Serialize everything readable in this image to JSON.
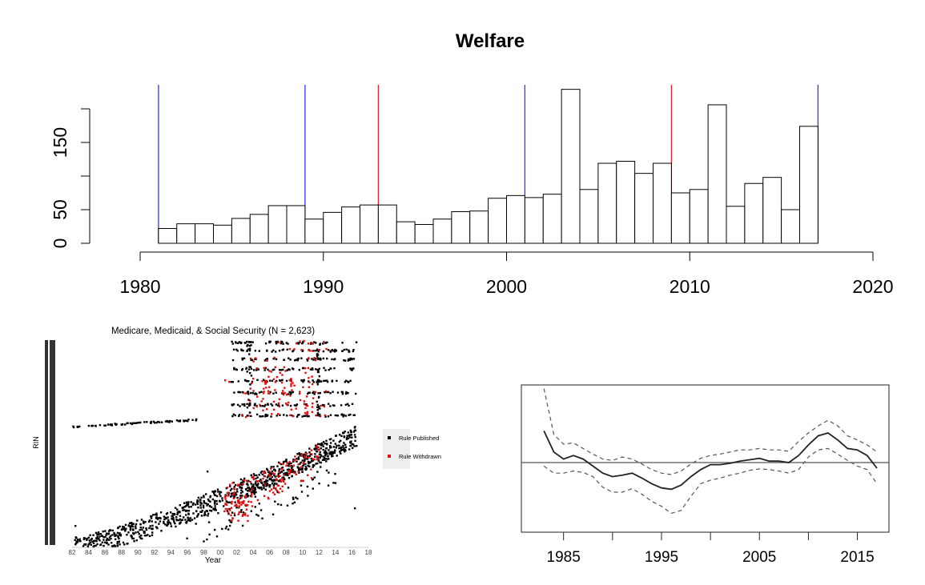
{
  "colors": {
    "bar_stroke": "#000000",
    "bar_fill": "#ffffff",
    "vline_blue": "#3333ff",
    "vline_red": "#e8242c",
    "published": "#000000",
    "withdrawn": "#dd1111",
    "grid_bar": "#333333"
  },
  "chart_data": [
    {
      "type": "bar",
      "title": "Welfare",
      "x_ticks": [
        "1980",
        "1990",
        "2000",
        "2010",
        "2020"
      ],
      "y_ticks": [
        "0",
        "50",
        "150"
      ],
      "xlim": [
        1980,
        2020
      ],
      "ylim": [
        0,
        200
      ],
      "bin_start": 1981,
      "bin_width": 1,
      "values": [
        22,
        29,
        29,
        27,
        37,
        43,
        56,
        56,
        36,
        46,
        54,
        57,
        57,
        32,
        28,
        36,
        47,
        48,
        67,
        71,
        68,
        73,
        229,
        80,
        119,
        122,
        104,
        119,
        75,
        80,
        206,
        55,
        89,
        98,
        50,
        174
      ],
      "vlines_blue": [
        1981,
        1989,
        2001,
        2017
      ],
      "vlines_red": [
        1993,
        2009
      ]
    },
    {
      "type": "scatter",
      "title": "Medicare, Medicaid, & Social Security (N = 2,623)",
      "xlabel": "Year",
      "ylabel": "RIN",
      "x_ticks": [
        "82",
        "84",
        "86",
        "88",
        "90",
        "92",
        "94",
        "96",
        "98",
        "00",
        "02",
        "04",
        "06",
        "08",
        "10",
        "12",
        "14",
        "16",
        "18"
      ],
      "xlim": [
        1982,
        2018
      ],
      "legend": {
        "position": "right",
        "entries": [
          {
            "label": "Rule Published",
            "color": "#000000"
          },
          {
            "label": "Rule Withdrawn",
            "color": "#dd1111"
          }
        ]
      }
    },
    {
      "type": "line",
      "x_ticks": [
        "1985",
        "1995",
        "2005",
        "2015"
      ],
      "xlim": [
        1982,
        2017
      ],
      "ylim": [
        -1,
        1
      ],
      "x": [
        1983,
        1984,
        1985,
        1986,
        1987,
        1988,
        1989,
        1990,
        1991,
        1992,
        1993,
        1994,
        1995,
        1996,
        1997,
        1998,
        1999,
        2000,
        2001,
        2002,
        2003,
        2004,
        2005,
        2006,
        2007,
        2008,
        2009,
        2010,
        2011,
        2012,
        2013,
        2014,
        2015,
        2016,
        2017
      ],
      "series": [
        {
          "style": "solid",
          "values": [
            0.45,
            0.15,
            0.05,
            0.1,
            0.05,
            -0.05,
            -0.15,
            -0.2,
            -0.18,
            -0.15,
            -0.22,
            -0.3,
            -0.36,
            -0.38,
            -0.32,
            -0.2,
            -0.1,
            -0.03,
            -0.03,
            -0.01,
            0.02,
            0.04,
            0.06,
            0.02,
            0.02,
            0.0,
            0.1,
            0.25,
            0.38,
            0.42,
            0.32,
            0.2,
            0.18,
            0.1,
            -0.08
          ]
        },
        {
          "style": "dashed",
          "values": [
            1.05,
            0.4,
            0.26,
            0.28,
            0.2,
            0.12,
            0.05,
            0.03,
            0.08,
            0.05,
            -0.02,
            -0.1,
            -0.15,
            -0.17,
            -0.12,
            -0.02,
            0.06,
            0.1,
            0.12,
            0.15,
            0.18,
            0.18,
            0.2,
            0.18,
            0.18,
            0.16,
            0.3,
            0.42,
            0.52,
            0.6,
            0.52,
            0.38,
            0.32,
            0.25,
            0.15
          ]
        },
        {
          "style": "dashed",
          "values": [
            -0.05,
            -0.15,
            -0.15,
            -0.12,
            -0.14,
            -0.2,
            -0.35,
            -0.42,
            -0.42,
            -0.37,
            -0.45,
            -0.55,
            -0.62,
            -0.72,
            -0.68,
            -0.48,
            -0.3,
            -0.25,
            -0.22,
            -0.18,
            -0.15,
            -0.11,
            -0.09,
            -0.1,
            -0.12,
            -0.15,
            -0.1,
            0.08,
            0.18,
            0.2,
            0.12,
            0.03,
            -0.05,
            -0.1,
            -0.3
          ]
        }
      ],
      "hline": 0
    }
  ]
}
